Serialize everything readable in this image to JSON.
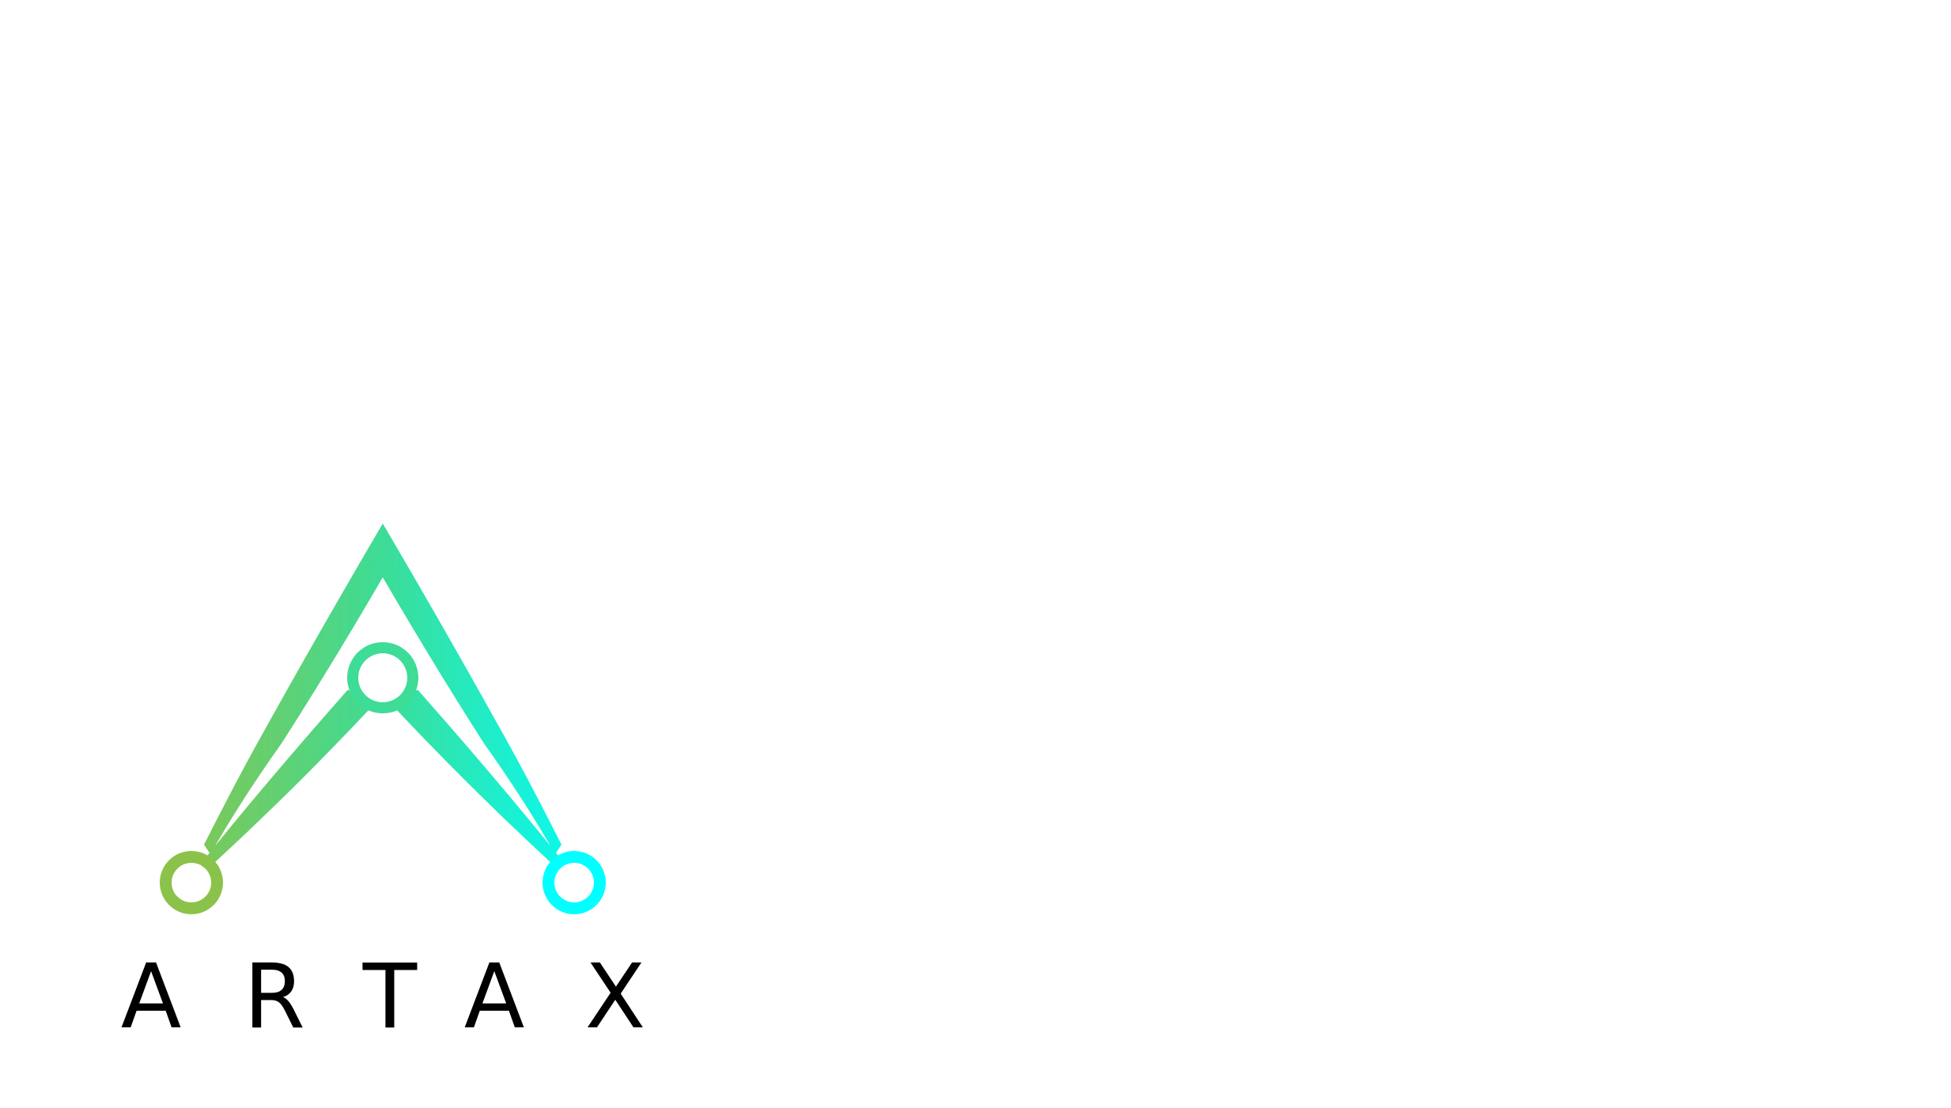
{
  "logo": {
    "name": "ARTAX",
    "letters": [
      "A",
      "R",
      "T",
      "A",
      "X"
    ]
  },
  "colors": {
    "background": "#ffffff",
    "gradient_start": "#8bc34a",
    "gradient_mid": "#3ddc97",
    "gradient_end": "#00ffff",
    "wordmark": "#000000"
  },
  "icons": {
    "emblem": "network-peak-icon",
    "node_left": "node-circle-icon",
    "node_center": "node-circle-icon",
    "node_right": "node-circle-icon"
  }
}
